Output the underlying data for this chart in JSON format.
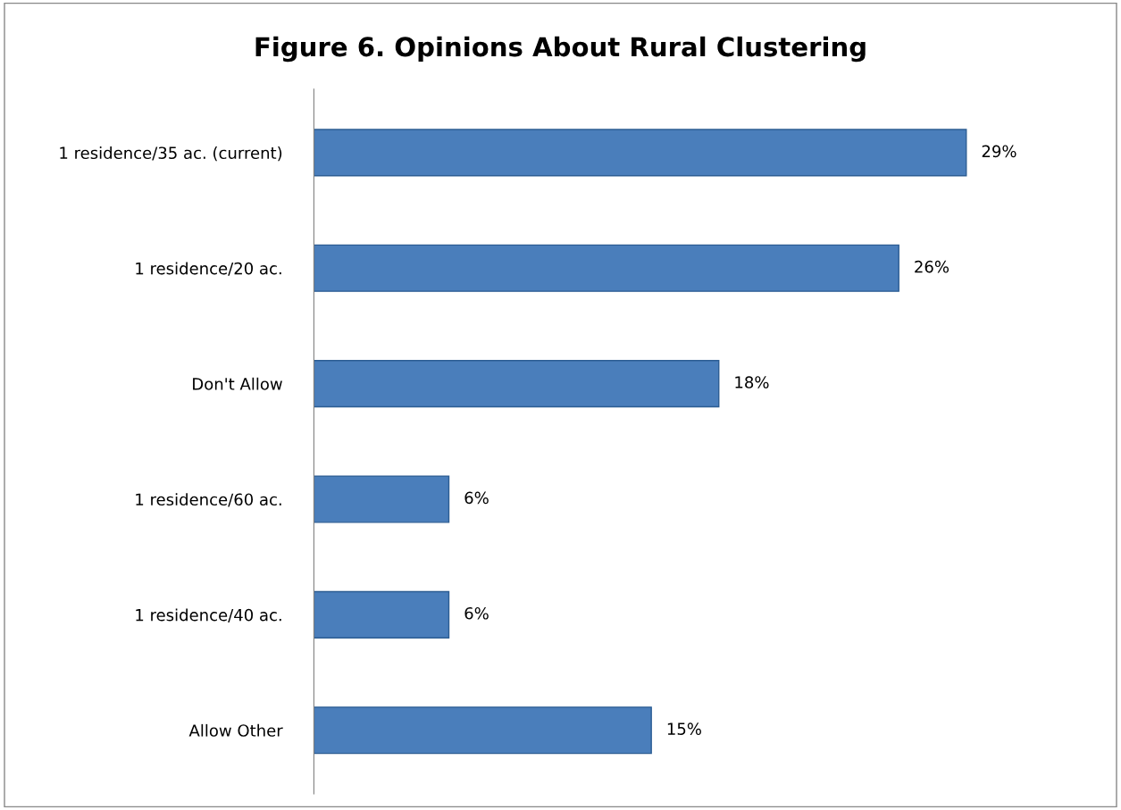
{
  "chart_data": {
    "type": "bar",
    "orientation": "horizontal",
    "title": "Figure 6. Opinions About Rural Clustering",
    "categories": [
      "1 residence/35 ac. (current)",
      "1 residence/20 ac.",
      "Don't Allow",
      "1 residence/60 ac.",
      "1 residence/40 ac.",
      "Allow Other"
    ],
    "values": [
      29,
      26,
      18,
      6,
      6,
      15
    ],
    "value_labels": [
      "29%",
      "26%",
      "18%",
      "6%",
      "6%",
      "15%"
    ],
    "color": "#4a7ebb",
    "tick_labels": "y",
    "grid": false,
    "legend": false
  }
}
